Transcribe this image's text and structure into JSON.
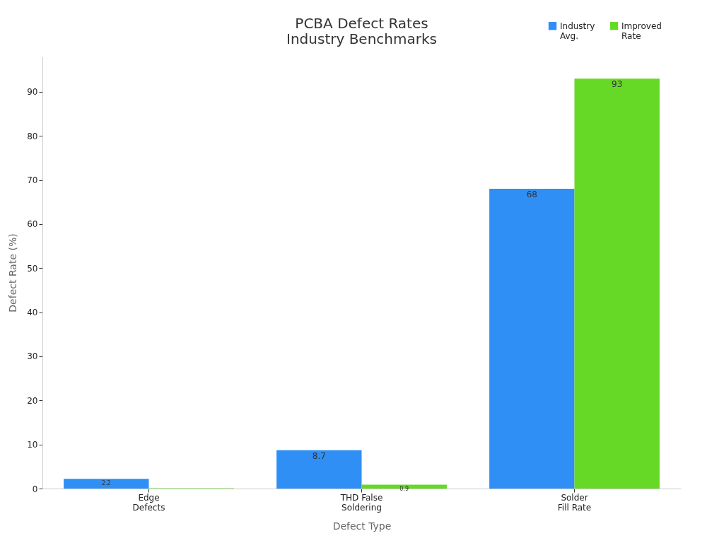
{
  "chart_data": {
    "type": "bar",
    "title": "PCBA Defect Rates",
    "subtitle": "Industry Benchmarks",
    "xlabel": "Defect Type",
    "ylabel": "Defect Rate (%)",
    "categories": [
      "Edge Defects",
      "THD False Soldering",
      "Solder Fill Rate"
    ],
    "series": [
      {
        "name": "Industry Avg.",
        "color": "#2f8ff5",
        "values": [
          2.2,
          8.7,
          68
        ],
        "value_labels": [
          "2.2",
          "8.7",
          "68"
        ]
      },
      {
        "name": "Improved Rate",
        "color": "#66d926",
        "values": [
          0.1,
          0.9,
          93
        ],
        "value_labels": [
          null,
          "0.9",
          "93"
        ]
      }
    ],
    "ylim": [
      0,
      98
    ],
    "yticks": [
      0,
      10,
      20,
      30,
      40,
      50,
      60,
      70,
      80,
      90
    ],
    "grid": false,
    "legend": "top right"
  }
}
